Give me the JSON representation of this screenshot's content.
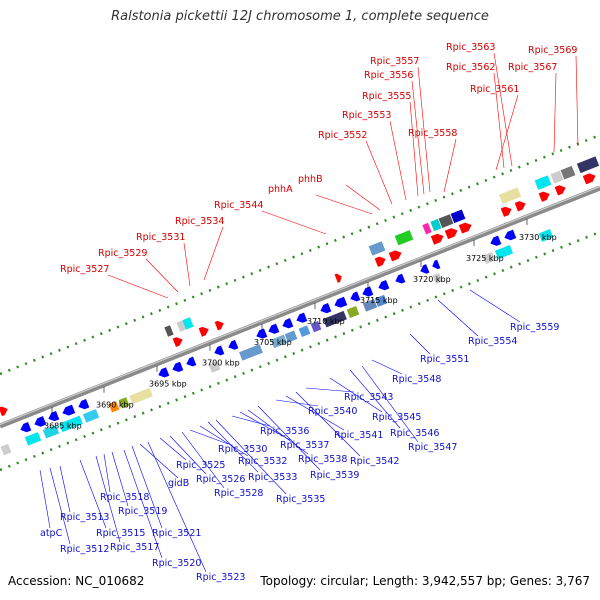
{
  "title": "Ralstonia pickettii 12J chromosome 1, complete sequence",
  "footer": {
    "accession": "Accession: NC_010682",
    "stats": "Topology: circular; Length: 3,942,557 bp; Genes: 3,767"
  },
  "colors": {
    "forward": "#ff0000",
    "reverse": "#0000ff",
    "backbone": "#777777",
    "dots": "#2e8b22"
  },
  "ticks": [
    "3685 kbp",
    "3690 kbp",
    "3695 kbp",
    "3700 kbp",
    "3705 kbp",
    "3710 kbp",
    "3715 kbp",
    "3720 kbp",
    "3725 kbp",
    "3730 kbp"
  ],
  "forward_labels": [
    "Rpic_3527",
    "Rpic_3529",
    "Rpic_3531",
    "Rpic_3534",
    "Rpic_3544",
    "phhA",
    "phhB",
    "Rpic_3552",
    "Rpic_3553",
    "Rpic_3555",
    "Rpic_3556",
    "Rpic_3557",
    "Rpic_3558",
    "Rpic_3561",
    "Rpic_3562",
    "Rpic_3563",
    "Rpic_3567",
    "Rpic_3569"
  ],
  "reverse_labels": [
    "atpC",
    "Rpic_3512",
    "Rpic_3513",
    "Rpic_3515",
    "Rpic_3517",
    "Rpic_3518",
    "Rpic_3519",
    "Rpic_3520",
    "Rpic_3521",
    "gidB",
    "Rpic_3523",
    "Rpic_3525",
    "Rpic_3526",
    "Rpic_3528",
    "Rpic_3530",
    "Rpic_3532",
    "Rpic_3533",
    "Rpic_3535",
    "Rpic_3536",
    "Rpic_3537",
    "Rpic_3538",
    "Rpic_3539",
    "Rpic_3540",
    "Rpic_3541",
    "Rpic_3542",
    "Rpic_3543",
    "Rpic_3545",
    "Rpic_3546",
    "Rpic_3547",
    "Rpic_3548",
    "Rpic_3551",
    "Rpic_3554",
    "Rpic_3559"
  ]
}
